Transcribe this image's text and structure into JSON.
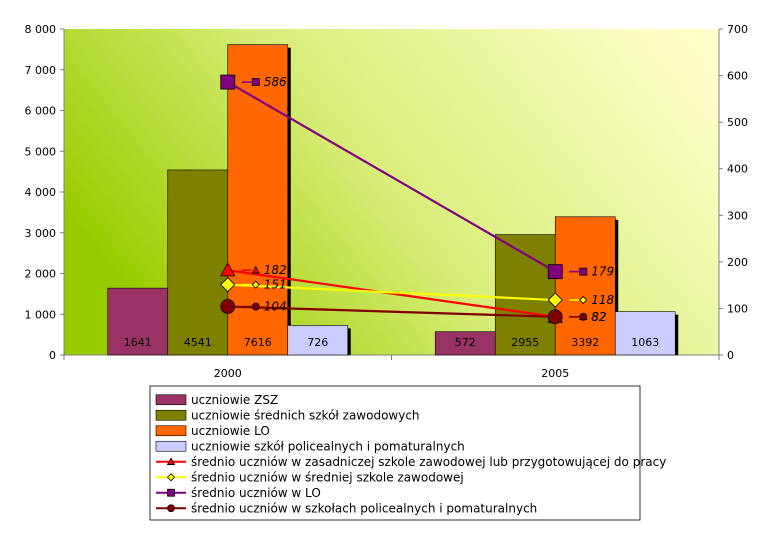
{
  "chart_data": {
    "type": "bar",
    "categories": [
      "2000",
      "2005"
    ],
    "ylim_left": [
      0,
      8000
    ],
    "ylim_right": [
      0,
      700
    ],
    "left_ticks": [
      "0",
      "1 000",
      "2 000",
      "3 000",
      "4 000",
      "5 000",
      "6 000",
      "7 000",
      "8 000"
    ],
    "right_ticks": [
      "0",
      "100",
      "200",
      "300",
      "400",
      "500",
      "600",
      "700"
    ],
    "grid": false,
    "legend_position": "bottom",
    "bar_series": [
      {
        "name": "uczniowie ZSZ",
        "values": [
          1641,
          572
        ],
        "labels": [
          "1641",
          "572"
        ],
        "color": "#993366"
      },
      {
        "name": "uczniowie średnich szkół zawodowych",
        "values": [
          4541,
          2955
        ],
        "labels": [
          "4541",
          "2955"
        ],
        "color": "#808000"
      },
      {
        "name": "uczniowie LO",
        "values": [
          7616,
          3392
        ],
        "labels": [
          "7616",
          "3392"
        ],
        "color": "#FF6600"
      },
      {
        "name": "uczniowie szkół policealnych i pomaturalnych",
        "values": [
          726,
          1063
        ],
        "labels": [
          "726",
          "1063"
        ],
        "color": "#CCCCFF"
      }
    ],
    "line_series": [
      {
        "name": "średnio uczniów w zasadniczej szkole zawodowej lub przygotowującej do pracy",
        "values": [
          182,
          82
        ],
        "labels": [
          "182",
          "82"
        ],
        "color": "#FF0000",
        "marker": "triangle"
      },
      {
        "name": "średnio uczniów w średniej szkole zawodowej",
        "values": [
          151,
          118
        ],
        "labels": [
          "151",
          "118"
        ],
        "color": "#FFFF00",
        "marker": "diamond"
      },
      {
        "name": "średnio uczniów w LO",
        "values": [
          586,
          179
        ],
        "labels": [
          "586",
          "179"
        ],
        "color": "#800080",
        "marker": "square"
      },
      {
        "name": "średnio uczniów w szkołach policealnych i pomaturalnych",
        "values": [
          104,
          82
        ],
        "labels": [
          "104",
          "82"
        ],
        "color": "#800000",
        "marker": "circle"
      }
    ]
  }
}
